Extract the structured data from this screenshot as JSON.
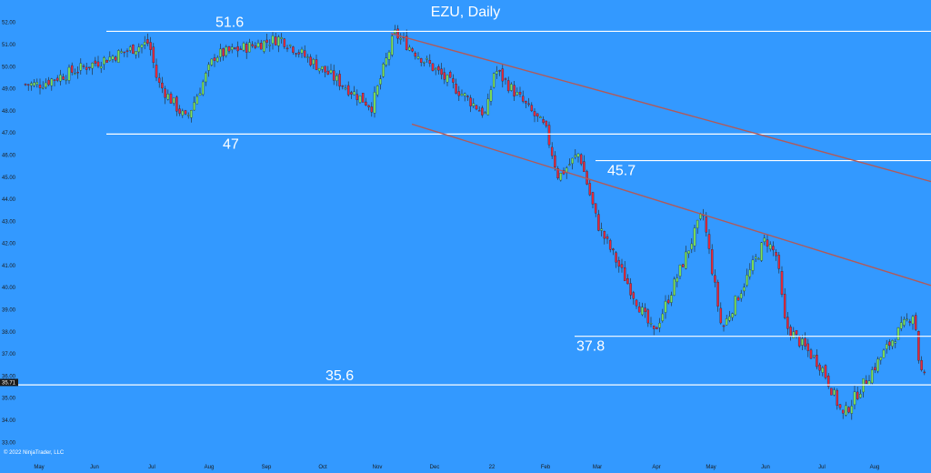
{
  "chart_data": {
    "type": "candlestick",
    "title": "EZU, Daily",
    "copyright": "© 2022 NinjaTrader, LLC",
    "last_price_label": "35.71",
    "last_price": 35.71,
    "y_ticks": [
      "52.00",
      "51.00",
      "50.00",
      "49.00",
      "48.00",
      "47.00",
      "46.00",
      "45.00",
      "44.00",
      "43.00",
      "42.00",
      "41.00",
      "40.00",
      "39.00",
      "38.00",
      "37.00",
      "36.00",
      "35.00",
      "34.00",
      "33.00"
    ],
    "x_labels": [
      "May",
      "Jun",
      "Jul",
      "Aug",
      "Sep",
      "Oct",
      "Nov",
      "Dec",
      "22",
      "Feb",
      "Mar",
      "Apr",
      "May",
      "Jun",
      "Jul",
      "Aug"
    ],
    "ylim": [
      32.6,
      52.4
    ],
    "horizontal_levels": [
      {
        "label": "51.6",
        "value": 51.6
      },
      {
        "label": "47",
        "value": 46.95
      },
      {
        "label": "45.7",
        "value": 45.75
      },
      {
        "label": "37.8",
        "value": 37.8
      },
      {
        "label": "35.6",
        "value": 35.6
      }
    ],
    "channel_lines": [
      {
        "start": {
          "x": "Nov",
          "y": 51.5
        },
        "end": {
          "x": "Aug",
          "y": 44.8
        }
      },
      {
        "start": {
          "x": "Dec",
          "y": 47.4
        },
        "end": {
          "x": "Aug",
          "y": 40.1
        }
      }
    ],
    "anchor_closes": [
      {
        "x": "May",
        "close": 49.2
      },
      {
        "x": "Jun",
        "close": 51.1
      },
      {
        "x": "Jul",
        "close": 49.3
      },
      {
        "x": "Jul",
        "close": 47.6
      },
      {
        "x": "Aug",
        "close": 50.5
      },
      {
        "x": "Sep",
        "close": 51.3
      },
      {
        "x": "Oct",
        "close": 48.2
      },
      {
        "x": "Nov",
        "close": 51.5
      },
      {
        "x": "Dec",
        "close": 47.8
      },
      {
        "x": "22",
        "close": 49.9
      },
      {
        "x": "Feb",
        "close": 46.1
      },
      {
        "x": "Feb",
        "close": 47.2
      },
      {
        "x": "Feb",
        "close": 45.0
      },
      {
        "x": "Mar",
        "close": 37.9
      },
      {
        "x": "Mar",
        "close": 42.9
      },
      {
        "x": "Apr",
        "close": 43.4
      },
      {
        "x": "Apr",
        "close": 41.5
      },
      {
        "x": "May",
        "close": 38.1
      },
      {
        "x": "Jun",
        "close": 42.2
      },
      {
        "x": "Jun",
        "close": 41.4
      },
      {
        "x": "Jun",
        "close": 38.3
      },
      {
        "x": "Jul",
        "close": 36.4
      },
      {
        "x": "Jul",
        "close": 34.2
      },
      {
        "x": "Aug",
        "close": 37.6
      },
      {
        "x": "Aug",
        "close": 38.9
      },
      {
        "x": "Aug",
        "close": 36.3
      },
      {
        "x": "Aug",
        "close": 35.7
      }
    ]
  },
  "colors": {
    "background": "#3399ff",
    "up": "#7ee35a",
    "down": "#e8283c",
    "level_line": "#ffffff",
    "channel": "#b05a5a"
  }
}
